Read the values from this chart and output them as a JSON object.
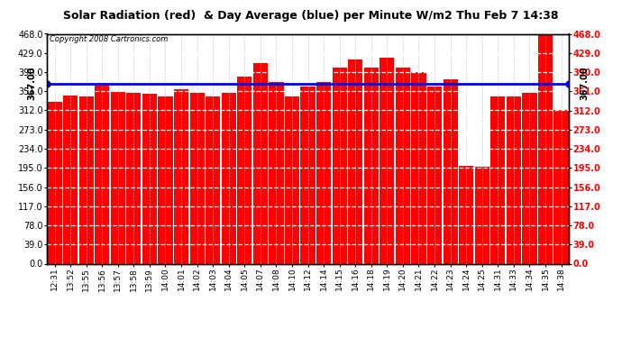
{
  "title": "Solar Radiation (red)  & Day Average (blue) per Minute W/m2 Thu Feb 7 14:38",
  "copyright": "Copyright 2008 Cartronics.com",
  "average_value": 367.0,
  "ylim_max": 468.0,
  "yticks": [
    0.0,
    39.0,
    78.0,
    117.0,
    156.0,
    195.0,
    234.0,
    273.0,
    312.0,
    351.0,
    390.0,
    429.0,
    468.0
  ],
  "bar_color": "#FF0000",
  "avg_line_color": "#0000EE",
  "background_color": "#FFFFFF",
  "grid_color_h": "#FFFFFF",
  "grid_color_v": "#BBBBBB",
  "title_fontsize": 9,
  "tick_fontsize": 7,
  "xlabel_fontsize": 6.5,
  "categories": [
    "12:31",
    "13:52",
    "13:55",
    "13:56",
    "13:57",
    "13:58",
    "13:59",
    "14:00",
    "14:01",
    "14:02",
    "14:03",
    "14:04",
    "14:05",
    "14:07",
    "14:08",
    "14:10",
    "14:12",
    "14:14",
    "14:15",
    "14:16",
    "14:18",
    "14:19",
    "14:20",
    "14:21",
    "14:22",
    "14:23",
    "14:24",
    "14:25",
    "14:31",
    "14:33",
    "14:34",
    "14:35",
    "14:38"
  ],
  "values": [
    330,
    342,
    340,
    362,
    350,
    348,
    346,
    340,
    355,
    348,
    340,
    348,
    380,
    408,
    370,
    340,
    360,
    370,
    400,
    415,
    400,
    420,
    400,
    390,
    360,
    375,
    200,
    198,
    340,
    340,
    348,
    476,
    312
  ]
}
